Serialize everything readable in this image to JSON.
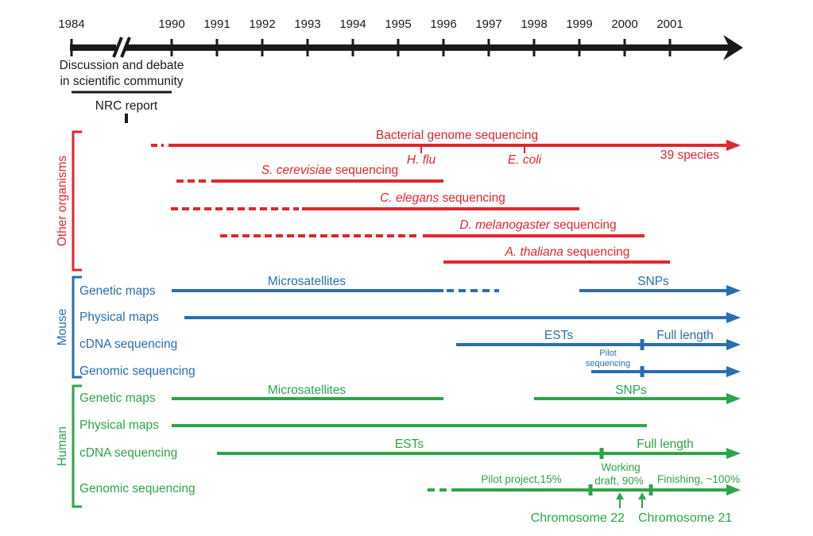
{
  "colors": {
    "axis": "#1a1a1a",
    "other_organisms": "#e0262e",
    "mouse": "#2a6db5",
    "human": "#2ea44a"
  },
  "timeline": {
    "years": [
      "1984",
      "1990",
      "1991",
      "1992",
      "1993",
      "1994",
      "1995",
      "1996",
      "1997",
      "1998",
      "1999",
      "2000",
      "2001"
    ],
    "discussion_line1": "Discussion and debate",
    "discussion_line2": "in scientific community",
    "nrc_report": "NRC report"
  },
  "groups": {
    "other": "Other organisms",
    "mouse": "Mouse",
    "human": "Human"
  },
  "other": {
    "bacterial": "Bacterial genome sequencing",
    "h_flu": "H. flu",
    "e_coli": "E. coli",
    "species_39": "39 species",
    "s_cerevisiae_species": "S. cerevisiae",
    "s_cerevisiae_suffix": " sequencing",
    "c_elegans_species": "C. elegans",
    "c_elegans_suffix": " sequencing",
    "d_melanogaster_species": "D. melanogaster",
    "d_melanogaster_suffix": " sequencing",
    "a_thaliana_species": "A. thaliana",
    "a_thaliana_suffix": " sequencing"
  },
  "mouse": {
    "rows": [
      "Genetic maps",
      "Physical maps",
      "cDNA sequencing",
      "Genomic sequencing"
    ],
    "microsatellites": "Microsatellites",
    "snps": "SNPs",
    "ests": "ESTs",
    "full_length": "Full length",
    "pilot_line1": "Pilot",
    "pilot_line2": "sequencing"
  },
  "human": {
    "rows": [
      "Genetic maps",
      "Physical maps",
      "cDNA sequencing",
      "Genomic sequencing"
    ],
    "microsatellites": "Microsatellites",
    "snps": "SNPs",
    "ests": "ESTs",
    "full_length": "Full length",
    "pilot_project": "Pilot project,15%",
    "working_line1": "Working",
    "working_line2": "draft, 90%",
    "finishing": "Finishing, ~100%",
    "chromosome22": "Chromosome 22",
    "chromosome21": "Chromosome 21"
  }
}
